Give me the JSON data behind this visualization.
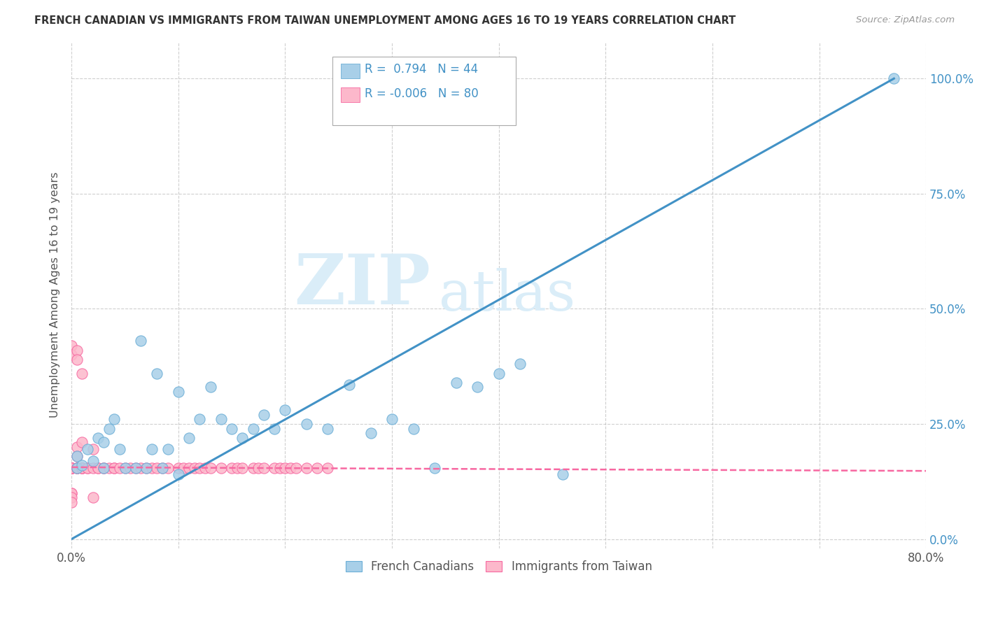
{
  "title": "FRENCH CANADIAN VS IMMIGRANTS FROM TAIWAN UNEMPLOYMENT AMONG AGES 16 TO 19 YEARS CORRELATION CHART",
  "source": "Source: ZipAtlas.com",
  "ylabel": "Unemployment Among Ages 16 to 19 years",
  "xlim": [
    0.0,
    0.8
  ],
  "ylim": [
    -0.02,
    1.08
  ],
  "r_blue": 0.794,
  "n_blue": 44,
  "r_pink": -0.006,
  "n_pink": 80,
  "legend_label_blue": "French Canadians",
  "legend_label_pink": "Immigrants from Taiwan",
  "watermark_zip": "ZIP",
  "watermark_atlas": "atlas",
  "blue_color": "#a8cfe8",
  "blue_edge_color": "#6baed6",
  "pink_color": "#fcb8cb",
  "pink_edge_color": "#f768a1",
  "blue_line_color": "#4292c6",
  "pink_line_color": "#f768a1",
  "bg_color": "#ffffff",
  "grid_color": "#bbbbbb",
  "watermark_color": "#daedf8",
  "blue_scatter_x": [
    0.005,
    0.005,
    0.01,
    0.015,
    0.02,
    0.025,
    0.03,
    0.03,
    0.035,
    0.04,
    0.045,
    0.05,
    0.06,
    0.065,
    0.07,
    0.075,
    0.08,
    0.085,
    0.09,
    0.1,
    0.1,
    0.11,
    0.12,
    0.13,
    0.14,
    0.15,
    0.16,
    0.17,
    0.18,
    0.19,
    0.2,
    0.22,
    0.24,
    0.26,
    0.28,
    0.3,
    0.32,
    0.34,
    0.36,
    0.38,
    0.4,
    0.42,
    0.46,
    0.77
  ],
  "blue_scatter_y": [
    0.155,
    0.18,
    0.16,
    0.195,
    0.17,
    0.22,
    0.155,
    0.21,
    0.24,
    0.26,
    0.195,
    0.155,
    0.155,
    0.43,
    0.155,
    0.195,
    0.36,
    0.155,
    0.195,
    0.14,
    0.32,
    0.22,
    0.26,
    0.33,
    0.26,
    0.24,
    0.22,
    0.24,
    0.27,
    0.24,
    0.28,
    0.25,
    0.24,
    0.335,
    0.23,
    0.26,
    0.24,
    0.155,
    0.34,
    0.33,
    0.36,
    0.38,
    0.14,
    1.0
  ],
  "pink_scatter_x": [
    0.0,
    0.0,
    0.0,
    0.0,
    0.0,
    0.0,
    0.0,
    0.0,
    0.0,
    0.0,
    0.0,
    0.0,
    0.0,
    0.0,
    0.0,
    0.0,
    0.0,
    0.0,
    0.0,
    0.0,
    0.0,
    0.0,
    0.005,
    0.005,
    0.005,
    0.005,
    0.005,
    0.005,
    0.005,
    0.005,
    0.01,
    0.01,
    0.01,
    0.01,
    0.01,
    0.01,
    0.015,
    0.015,
    0.02,
    0.02,
    0.02,
    0.025,
    0.025,
    0.03,
    0.03,
    0.035,
    0.04,
    0.04,
    0.045,
    0.05,
    0.055,
    0.06,
    0.065,
    0.07,
    0.075,
    0.08,
    0.085,
    0.09,
    0.1,
    0.105,
    0.11,
    0.115,
    0.12,
    0.125,
    0.13,
    0.14,
    0.15,
    0.155,
    0.16,
    0.17,
    0.175,
    0.18,
    0.19,
    0.195,
    0.2,
    0.205,
    0.21,
    0.22,
    0.23,
    0.24
  ],
  "pink_scatter_y": [
    0.155,
    0.155,
    0.155,
    0.155,
    0.155,
    0.155,
    0.155,
    0.155,
    0.155,
    0.155,
    0.155,
    0.155,
    0.42,
    0.4,
    0.155,
    0.155,
    0.155,
    0.155,
    0.1,
    0.1,
    0.09,
    0.08,
    0.41,
    0.39,
    0.155,
    0.155,
    0.155,
    0.2,
    0.18,
    0.155,
    0.155,
    0.21,
    0.36,
    0.155,
    0.155,
    0.155,
    0.155,
    0.155,
    0.195,
    0.155,
    0.09,
    0.155,
    0.155,
    0.155,
    0.155,
    0.155,
    0.155,
    0.155,
    0.155,
    0.155,
    0.155,
    0.155,
    0.155,
    0.155,
    0.155,
    0.155,
    0.155,
    0.155,
    0.155,
    0.155,
    0.155,
    0.155,
    0.155,
    0.155,
    0.155,
    0.155,
    0.155,
    0.155,
    0.155,
    0.155,
    0.155,
    0.155,
    0.155,
    0.155,
    0.155,
    0.155,
    0.155,
    0.155,
    0.155,
    0.155
  ],
  "blue_line_x": [
    0.0,
    0.77
  ],
  "blue_line_y": [
    0.0,
    1.0
  ],
  "pink_line_x": [
    0.0,
    0.8
  ],
  "pink_line_y": [
    0.156,
    0.148
  ]
}
